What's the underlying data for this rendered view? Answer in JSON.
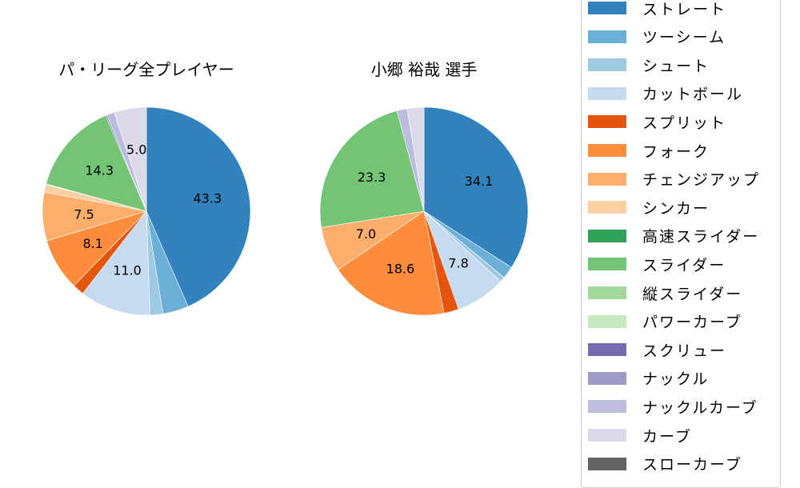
{
  "chart_data": [
    {
      "type": "pie",
      "title": "パ・リーグ全プレイヤー",
      "start_angle": "top, clockwise",
      "categories": [
        "ストレート",
        "ツーシーム",
        "シュート",
        "カットボール",
        "スプリット",
        "フォーク",
        "チェンジアップ",
        "シンカー",
        "高速スライダー",
        "スライダー",
        "縦スライダー",
        "パワーカーブ",
        "スクリュー",
        "ナックル",
        "ナックルカーブ",
        "カーブ",
        "スローカーブ"
      ],
      "values": [
        43.3,
        4.0,
        2.0,
        11.0,
        1.8,
        8.1,
        7.5,
        1.2,
        0.1,
        14.3,
        0.0,
        0.0,
        0.2,
        0.0,
        1.2,
        5.0,
        0.0
      ],
      "labeled_values": {
        "ストレート": 43.3,
        "カットボール": 11.0,
        "フォーク": 8.1,
        "スライダー": 14.3
      },
      "center": [
        183,
        264
      ],
      "radius": 130
    },
    {
      "type": "pie",
      "title": "小郷 裕哉  選手",
      "start_angle": "top, clockwise",
      "categories": [
        "ストレート",
        "ツーシーム",
        "シュート",
        "カットボール",
        "スプリット",
        "フォーク",
        "チェンジアップ",
        "シンカー",
        "高速スライダー",
        "スライダー",
        "縦スライダー",
        "パワーカーブ",
        "スクリュー",
        "ナックル",
        "ナックルカーブ",
        "カーブ",
        "スローカーブ"
      ],
      "values": [
        34.1,
        1.9,
        0.8,
        7.8,
        2.3,
        18.6,
        7.0,
        0.0,
        0.0,
        23.3,
        0.0,
        0.0,
        0.0,
        0.0,
        1.6,
        2.6,
        0.0
      ],
      "labeled_values": {
        "ストレート": 34.1,
        "カットボール": 7.8,
        "フォーク": 18.6,
        "チェンジアップ": 7.0,
        "スライダー": 23.3
      },
      "center": [
        530,
        264
      ],
      "radius": 130
    }
  ],
  "label_threshold": 5.0,
  "legend": {
    "position": "right",
    "items": [
      {
        "label": "ストレート",
        "color": "#3182bd"
      },
      {
        "label": "ツーシーム",
        "color": "#6baed6"
      },
      {
        "label": "シュート",
        "color": "#9ecae1"
      },
      {
        "label": "カットボール",
        "color": "#c6dbef"
      },
      {
        "label": "スプリット",
        "color": "#e6550d"
      },
      {
        "label": "フォーク",
        "color": "#fd8d3c"
      },
      {
        "label": "チェンジアップ",
        "color": "#fdae6b"
      },
      {
        "label": "シンカー",
        "color": "#fdd0a2"
      },
      {
        "label": "高速スライダー",
        "color": "#31a354"
      },
      {
        "label": "スライダー",
        "color": "#74c476"
      },
      {
        "label": "縦スライダー",
        "color": "#a1d99b"
      },
      {
        "label": "パワーカーブ",
        "color": "#c7e9c0"
      },
      {
        "label": "スクリュー",
        "color": "#756bb1"
      },
      {
        "label": "ナックル",
        "color": "#9e9ac8"
      },
      {
        "label": "ナックルカーブ",
        "color": "#bcbddc"
      },
      {
        "label": "カーブ",
        "color": "#dadaeb"
      },
      {
        "label": "スローカーブ",
        "color": "#636363"
      }
    ]
  }
}
